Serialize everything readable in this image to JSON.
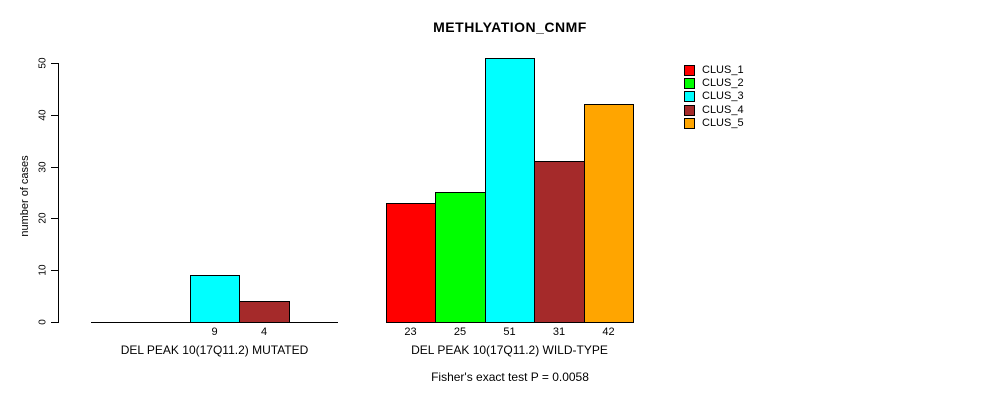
{
  "chart_data": {
    "type": "bar",
    "title": "METHLYATION_CNMF",
    "ylabel": "number of cases",
    "ylim": [
      0,
      50
    ],
    "yticks": [
      0,
      10,
      20,
      30,
      40,
      50
    ],
    "grid": false,
    "legend": {
      "position": "top-right",
      "items": [
        {
          "label": "CLUS_1",
          "color": "#ff0000"
        },
        {
          "label": "CLUS_2",
          "color": "#00ff00"
        },
        {
          "label": "CLUS_3",
          "color": "#00ffff"
        },
        {
          "label": "CLUS_4",
          "color": "#a52a2a"
        },
        {
          "label": "CLUS_5",
          "color": "#ffa500"
        }
      ]
    },
    "groups": [
      {
        "label": "DEL PEAK 10(17Q11.2) MUTATED",
        "series": [
          "CLUS_1",
          "CLUS_2",
          "CLUS_3",
          "CLUS_4",
          "CLUS_5"
        ],
        "values": [
          0,
          0,
          9,
          4,
          0
        ],
        "value_labels": [
          "",
          "",
          "9",
          "4",
          ""
        ]
      },
      {
        "label": "DEL PEAK 10(17Q11.2) WILD-TYPE",
        "series": [
          "CLUS_1",
          "CLUS_2",
          "CLUS_3",
          "CLUS_4",
          "CLUS_5"
        ],
        "values": [
          23,
          25,
          51,
          31,
          42
        ],
        "value_labels": [
          "23",
          "25",
          "51",
          "31",
          "42"
        ]
      }
    ],
    "annotation": "Fisher's exact test P = 0.0058"
  }
}
